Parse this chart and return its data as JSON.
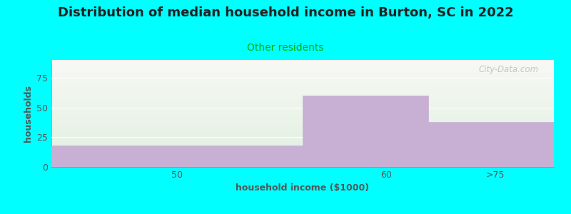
{
  "title": "Distribution of median household income in Burton, SC in 2022",
  "subtitle": "Other residents",
  "xlabel": "household income ($1000)",
  "ylabel": "households",
  "categories": [
    "50",
    "60",
    ">75"
  ],
  "values": [
    18,
    60,
    38
  ],
  "bar_color": "#c8afd4",
  "bar_edgecolor": "#c8afd4",
  "bg_color": "#00ffff",
  "plot_bg_top": "#f8f8f5",
  "plot_bg_bottom": "#e0f0e0",
  "ylim": [
    0,
    90
  ],
  "yticks": [
    0,
    25,
    50,
    75
  ],
  "xlim": [
    0,
    3
  ],
  "xtick_positions": [
    0.75,
    2.0,
    2.65
  ],
  "xtick_labels": [
    "50",
    "60",
    ">75"
  ],
  "bin_edges": [
    0,
    1.5,
    2.25,
    3.0
  ],
  "title_fontsize": 13,
  "subtitle_fontsize": 10,
  "subtitle_color": "#00aa00",
  "axis_label_fontsize": 9,
  "watermark": "City-Data.com"
}
